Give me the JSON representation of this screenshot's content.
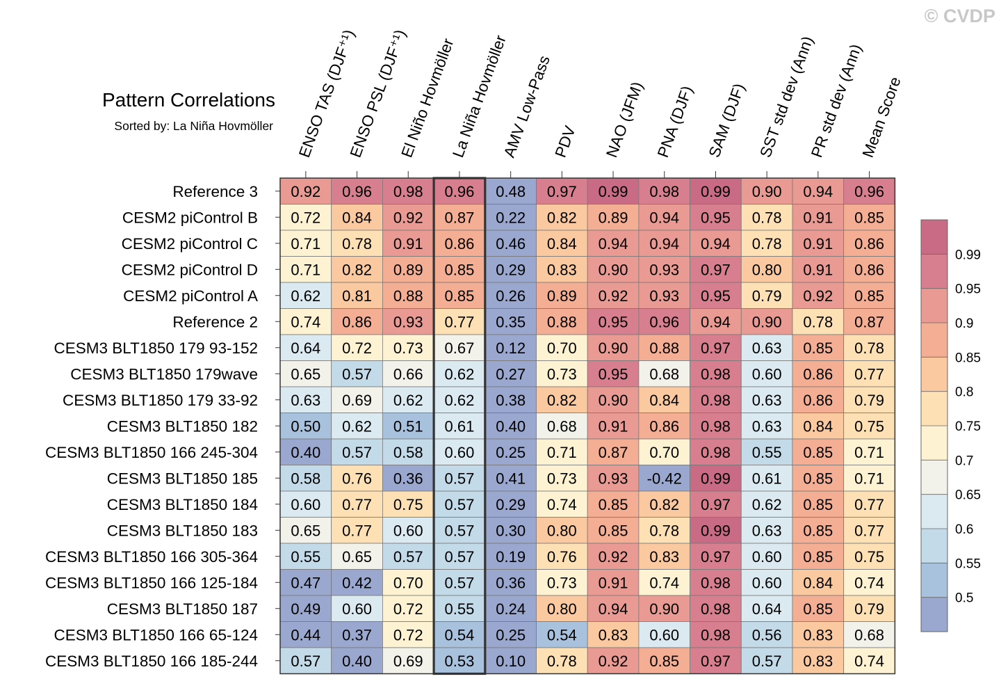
{
  "watermark": "© CVDP",
  "chart_data": {
    "type": "heatmap",
    "title": "Pattern Correlations",
    "subtitle": "Sorted by: La Niña Hovmöller",
    "columns": [
      "ENSO TAS (DJF⁺¹)",
      "ENSO PSL (DJF⁺¹)",
      "El Niño Hovmöller",
      "La Niña Hovmöller",
      "AMV Low-Pass",
      "PDV",
      "NAO (JFM)",
      "PNA (DJF)",
      "SAM (DJF)",
      "SST std dev (Ann)",
      "PR std dev (Ann)",
      "Mean Score"
    ],
    "highlighted_column": "La Niña Hovmöller",
    "rows": [
      "Reference 3",
      "CESM2 piControl B",
      "CESM2 piControl C",
      "CESM2 piControl D",
      "CESM2 piControl A",
      "Reference 2",
      "CESM3 BLT1850 179 93-152",
      "CESM3 BLT1850 179wave",
      "CESM3 BLT1850 179 33-92",
      "CESM3 BLT1850 182",
      "CESM3 BLT1850 166 245-304",
      "CESM3 BLT1850 185",
      "CESM3 BLT1850 184",
      "CESM3 BLT1850 183",
      "CESM3 BLT1850 166 305-364",
      "CESM3 BLT1850 166 125-184",
      "CESM3 BLT1850 187",
      "CESM3 BLT1850 166 65-124",
      "CESM3 BLT1850 166 185-244"
    ],
    "values": [
      [
        "0.92",
        "0.96",
        "0.98",
        "0.96",
        "0.48",
        "0.97",
        "0.99",
        "0.98",
        "0.99",
        "0.90",
        "0.94",
        "0.96"
      ],
      [
        "0.72",
        "0.84",
        "0.92",
        "0.87",
        "0.22",
        "0.82",
        "0.89",
        "0.94",
        "0.95",
        "0.78",
        "0.91",
        "0.85"
      ],
      [
        "0.71",
        "0.78",
        "0.91",
        "0.86",
        "0.46",
        "0.84",
        "0.94",
        "0.94",
        "0.94",
        "0.78",
        "0.91",
        "0.86"
      ],
      [
        "0.71",
        "0.82",
        "0.89",
        "0.85",
        "0.29",
        "0.83",
        "0.90",
        "0.93",
        "0.97",
        "0.80",
        "0.91",
        "0.86"
      ],
      [
        "0.62",
        "0.81",
        "0.88",
        "0.85",
        "0.26",
        "0.89",
        "0.92",
        "0.93",
        "0.95",
        "0.79",
        "0.92",
        "0.85"
      ],
      [
        "0.74",
        "0.86",
        "0.93",
        "0.77",
        "0.35",
        "0.88",
        "0.95",
        "0.96",
        "0.94",
        "0.90",
        "0.78",
        "0.87"
      ],
      [
        "0.64",
        "0.72",
        "0.73",
        "0.67",
        "0.12",
        "0.70",
        "0.90",
        "0.88",
        "0.97",
        "0.63",
        "0.85",
        "0.78"
      ],
      [
        "0.65",
        "0.57",
        "0.66",
        "0.62",
        "0.27",
        "0.73",
        "0.95",
        "0.68",
        "0.98",
        "0.60",
        "0.86",
        "0.77"
      ],
      [
        "0.63",
        "0.69",
        "0.62",
        "0.62",
        "0.38",
        "0.82",
        "0.90",
        "0.84",
        "0.98",
        "0.63",
        "0.86",
        "0.79"
      ],
      [
        "0.50",
        "0.62",
        "0.51",
        "0.61",
        "0.40",
        "0.68",
        "0.91",
        "0.86",
        "0.98",
        "0.63",
        "0.84",
        "0.75"
      ],
      [
        "0.40",
        "0.57",
        "0.58",
        "0.60",
        "0.25",
        "0.71",
        "0.87",
        "0.70",
        "0.98",
        "0.55",
        "0.85",
        "0.71"
      ],
      [
        "0.58",
        "0.76",
        "0.36",
        "0.57",
        "0.41",
        "0.73",
        "0.93",
        "-0.42",
        "0.99",
        "0.61",
        "0.85",
        "0.71"
      ],
      [
        "0.60",
        "0.77",
        "0.75",
        "0.57",
        "0.29",
        "0.74",
        "0.85",
        "0.82",
        "0.97",
        "0.62",
        "0.85",
        "0.77"
      ],
      [
        "0.65",
        "0.77",
        "0.60",
        "0.57",
        "0.30",
        "0.80",
        "0.85",
        "0.78",
        "0.99",
        "0.63",
        "0.85",
        "0.77"
      ],
      [
        "0.55",
        "0.65",
        "0.57",
        "0.57",
        "0.19",
        "0.76",
        "0.92",
        "0.83",
        "0.97",
        "0.60",
        "0.85",
        "0.75"
      ],
      [
        "0.47",
        "0.42",
        "0.70",
        "0.57",
        "0.36",
        "0.73",
        "0.91",
        "0.74",
        "0.98",
        "0.60",
        "0.84",
        "0.74"
      ],
      [
        "0.49",
        "0.60",
        "0.72",
        "0.55",
        "0.24",
        "0.80",
        "0.94",
        "0.90",
        "0.98",
        "0.64",
        "0.85",
        "0.79"
      ],
      [
        "0.44",
        "0.37",
        "0.72",
        "0.54",
        "0.25",
        "0.54",
        "0.83",
        "0.60",
        "0.98",
        "0.56",
        "0.83",
        "0.68"
      ],
      [
        "0.57",
        "0.40",
        "0.69",
        "0.53",
        "0.10",
        "0.78",
        "0.92",
        "0.85",
        "0.97",
        "0.57",
        "0.83",
        "0.74"
      ]
    ],
    "colorbar": {
      "levels": [
        0.5,
        0.55,
        0.6,
        0.65,
        0.7,
        0.75,
        0.8,
        0.85,
        0.9,
        0.95,
        0.99
      ],
      "labels": [
        "0.5",
        "0.55",
        "0.6",
        "0.65",
        "0.7",
        "0.75",
        "0.8",
        "0.85",
        "0.9",
        "0.95",
        "0.99"
      ],
      "colors": [
        "#9aa7ce",
        "#a8c1dc",
        "#c3dae8",
        "#dbeaf1",
        "#f2f2ea",
        "#fdf2d1",
        "#fde1b5",
        "#fbc9a0",
        "#f4ae94",
        "#e99a92",
        "#d77f8e",
        "#c96b84"
      ]
    }
  }
}
